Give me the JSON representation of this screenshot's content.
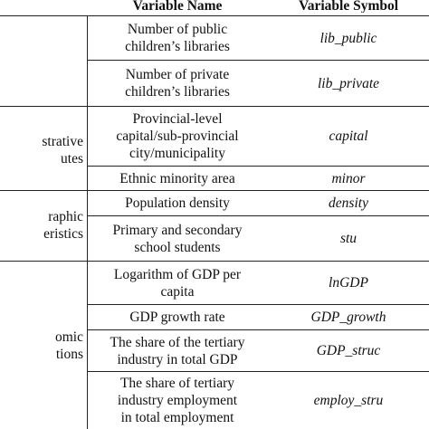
{
  "header": {
    "variable_name": "Variable Name",
    "variable_symbol": "Variable Symbol"
  },
  "categories": [
    {
      "text": ""
    },
    {
      "line1": "strative",
      "line2": "utes"
    },
    {
      "line1": "raphic",
      "line2": "eristics"
    },
    {
      "line1": "omic",
      "line2": "tions"
    }
  ],
  "rows": [
    {
      "name": [
        "Number of public",
        "children’s libraries"
      ],
      "symbol": "lib_public"
    },
    {
      "name": [
        "Number of private",
        "children’s libraries"
      ],
      "symbol": "lib_private"
    },
    {
      "name": [
        "Provincial-level",
        "capital/sub-provincial",
        "city/municipality"
      ],
      "symbol": "capital"
    },
    {
      "name": [
        "Ethnic minority area"
      ],
      "symbol": "minor"
    },
    {
      "name": [
        "Population density"
      ],
      "symbol": "density"
    },
    {
      "name": [
        "Primary and secondary",
        "school students"
      ],
      "symbol": "stu"
    },
    {
      "name": [
        "Logarithm of GDP per",
        "capita"
      ],
      "symbol": "lnGDP"
    },
    {
      "name": [
        "GDP growth rate"
      ],
      "symbol": "GDP_growth"
    },
    {
      "name": [
        "The share of the tertiary",
        "industry in total GDP"
      ],
      "symbol": "GDP_struc"
    },
    {
      "name": [
        "The share of tertiary",
        "industry employment",
        "in total employment"
      ],
      "symbol": "employ_stru"
    }
  ]
}
